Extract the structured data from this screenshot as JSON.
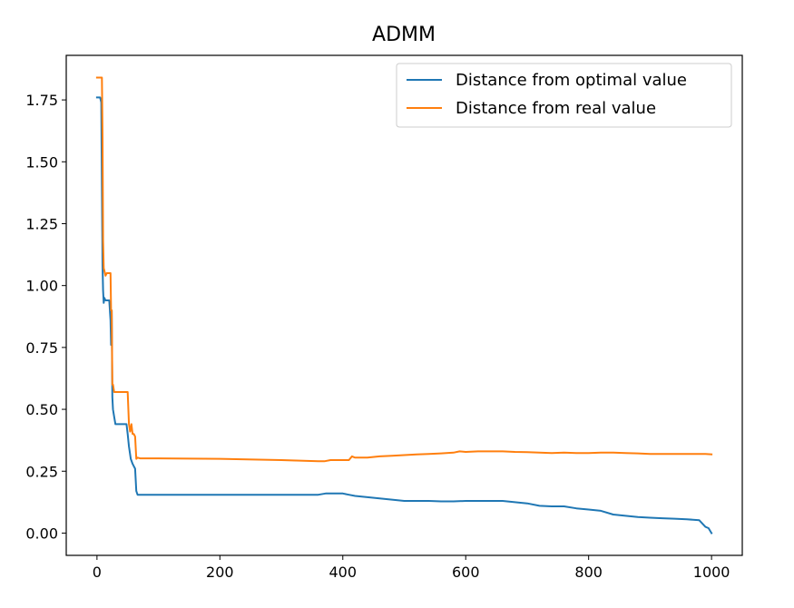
{
  "chart_data": {
    "type": "line",
    "title": "ADMM",
    "xlabel": "",
    "ylabel": "",
    "xlim": [
      -50,
      1050
    ],
    "ylim": [
      -0.09,
      1.93
    ],
    "xticks": [
      0,
      200,
      400,
      600,
      800,
      1000
    ],
    "xtick_labels": [
      "0",
      "200",
      "400",
      "600",
      "800",
      "1000"
    ],
    "yticks": [
      0.0,
      0.25,
      0.5,
      0.75,
      1.0,
      1.25,
      1.5,
      1.75
    ],
    "ytick_labels": [
      "0.00",
      "0.25",
      "0.50",
      "0.75",
      "1.00",
      "1.25",
      "1.50",
      "1.75"
    ],
    "grid": false,
    "legend_position": "top-right",
    "series": [
      {
        "name": "Distance from optimal value",
        "color": "#1f77b4",
        "x": [
          0,
          4,
          5,
          7,
          8,
          9,
          10,
          11,
          12,
          14,
          16,
          18,
          20,
          22,
          23,
          24,
          25,
          26,
          28,
          30,
          35,
          40,
          45,
          48,
          50,
          52,
          55,
          58,
          60,
          62,
          64,
          66,
          70,
          100,
          200,
          300,
          360,
          372,
          380,
          390,
          400,
          410,
          420,
          440,
          460,
          480,
          500,
          520,
          540,
          560,
          580,
          600,
          620,
          640,
          660,
          680,
          700,
          720,
          740,
          760,
          780,
          800,
          820,
          840,
          860,
          880,
          900,
          920,
          940,
          960,
          980,
          990,
          995,
          1000
        ],
        "y": [
          1.76,
          1.76,
          1.76,
          1.74,
          1.4,
          1.08,
          0.98,
          0.93,
          0.95,
          0.94,
          0.94,
          0.94,
          0.94,
          0.86,
          0.76,
          0.9,
          0.55,
          0.5,
          0.47,
          0.44,
          0.44,
          0.44,
          0.44,
          0.44,
          0.4,
          0.35,
          0.3,
          0.28,
          0.27,
          0.26,
          0.17,
          0.155,
          0.155,
          0.155,
          0.155,
          0.155,
          0.155,
          0.16,
          0.16,
          0.16,
          0.16,
          0.155,
          0.15,
          0.145,
          0.14,
          0.135,
          0.13,
          0.13,
          0.13,
          0.128,
          0.128,
          0.13,
          0.13,
          0.13,
          0.13,
          0.125,
          0.12,
          0.11,
          0.108,
          0.108,
          0.1,
          0.095,
          0.09,
          0.075,
          0.07,
          0.065,
          0.062,
          0.06,
          0.058,
          0.056,
          0.052,
          0.025,
          0.02,
          0.0
        ]
      },
      {
        "name": "Distance from real value",
        "color": "#ff7f0e",
        "x": [
          0,
          5,
          6,
          8,
          9,
          10,
          11,
          12,
          14,
          16,
          18,
          20,
          22,
          23,
          24,
          25,
          26,
          28,
          30,
          35,
          40,
          45,
          50,
          52,
          54,
          56,
          58,
          60,
          62,
          64,
          66,
          70,
          100,
          200,
          300,
          360,
          370,
          380,
          400,
          410,
          415,
          420,
          440,
          460,
          480,
          500,
          520,
          540,
          560,
          580,
          590,
          600,
          620,
          640,
          660,
          680,
          700,
          720,
          740,
          760,
          780,
          800,
          820,
          840,
          860,
          880,
          900,
          920,
          940,
          960,
          980,
          990,
          1000
        ],
        "y": [
          1.84,
          1.84,
          1.84,
          1.84,
          1.6,
          1.18,
          1.07,
          1.06,
          1.04,
          1.05,
          1.05,
          1.05,
          1.05,
          0.9,
          0.9,
          0.6,
          0.6,
          0.57,
          0.57,
          0.57,
          0.57,
          0.57,
          0.57,
          0.44,
          0.41,
          0.44,
          0.4,
          0.4,
          0.39,
          0.3,
          0.305,
          0.302,
          0.302,
          0.3,
          0.295,
          0.29,
          0.29,
          0.295,
          0.295,
          0.295,
          0.31,
          0.305,
          0.305,
          0.31,
          0.312,
          0.315,
          0.318,
          0.32,
          0.322,
          0.325,
          0.33,
          0.328,
          0.33,
          0.33,
          0.33,
          0.328,
          0.327,
          0.325,
          0.323,
          0.325,
          0.323,
          0.323,
          0.325,
          0.325,
          0.323,
          0.322,
          0.32,
          0.32,
          0.32,
          0.32,
          0.32,
          0.32,
          0.318
        ]
      }
    ]
  }
}
